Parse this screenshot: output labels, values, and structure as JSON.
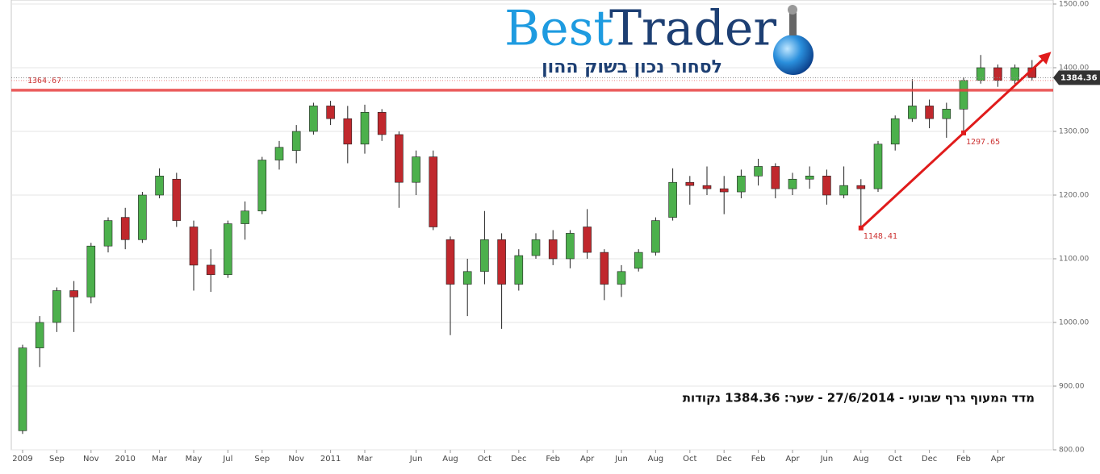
{
  "chart_data": {
    "type": "candlestick",
    "title": "מדד המעוף גרף שבועי - 27/6/2014 - שער: 1384.36 נקודות",
    "brand": {
      "first": "Best",
      "second": "Trader",
      "tagline": "לסחור נכון בשוק ההון"
    },
    "categories": [
      "2009",
      null,
      "Sep",
      null,
      "Nov",
      null,
      "2010",
      null,
      "Mar",
      null,
      "May",
      null,
      "Jul",
      null,
      "Sep",
      null,
      "Nov",
      null,
      "2011",
      null,
      "Mar",
      null,
      null,
      "Jun",
      null,
      "Aug",
      null,
      "Oct",
      null,
      "Dec",
      null,
      "Feb",
      null,
      "Apr",
      null,
      "Jun",
      null,
      "Aug",
      null,
      "Oct",
      null,
      "Dec",
      null,
      "Feb",
      null,
      "Apr",
      null,
      "Jun",
      null,
      "Aug",
      null,
      "Oct",
      null,
      "Dec",
      null,
      "Feb",
      null,
      "Apr",
      null,
      null
    ],
    "open": [
      830,
      960,
      1000,
      1050,
      1040,
      1120,
      1165,
      1130,
      1200,
      1225,
      1150,
      1090,
      1075,
      1155,
      1175,
      1255,
      1270,
      1300,
      1340,
      1320,
      1280,
      1330,
      1295,
      1220,
      1260,
      1130,
      1060,
      1080,
      1130,
      1060,
      1105,
      1130,
      1100,
      1150,
      1110,
      1060,
      1085,
      1110,
      1165,
      1220,
      1215,
      1210,
      1205,
      1230,
      1245,
      1210,
      1225,
      1230,
      1200,
      1215,
      1210,
      1280,
      1320,
      1340,
      1320,
      1335,
      1380,
      1400,
      1380,
      1400
    ],
    "high": [
      965,
      1010,
      1055,
      1065,
      1125,
      1165,
      1180,
      1205,
      1242,
      1235,
      1160,
      1115,
      1160,
      1190,
      1260,
      1285,
      1310,
      1345,
      1348,
      1340,
      1342,
      1335,
      1300,
      1270,
      1270,
      1135,
      1100,
      1175,
      1140,
      1115,
      1140,
      1145,
      1145,
      1178,
      1115,
      1090,
      1115,
      1165,
      1242,
      1230,
      1245,
      1230,
      1240,
      1257,
      1250,
      1235,
      1245,
      1240,
      1245,
      1225,
      1285,
      1325,
      1382,
      1350,
      1345,
      1385,
      1420,
      1405,
      1405,
      1412
    ],
    "low": [
      825,
      930,
      985,
      985,
      1030,
      1110,
      1115,
      1125,
      1195,
      1150,
      1050,
      1048,
      1070,
      1130,
      1170,
      1240,
      1250,
      1295,
      1310,
      1250,
      1265,
      1285,
      1180,
      1200,
      1145,
      980,
      1010,
      1060,
      990,
      1050,
      1100,
      1090,
      1085,
      1100,
      1035,
      1040,
      1080,
      1105,
      1160,
      1185,
      1200,
      1170,
      1195,
      1215,
      1195,
      1200,
      1210,
      1185,
      1195,
      1148.41,
      1205,
      1270,
      1315,
      1305,
      1290,
      1297.65,
      1375,
      1370,
      1372,
      1380
    ],
    "close": [
      960,
      1000,
      1050,
      1040,
      1120,
      1160,
      1130,
      1200,
      1230,
      1160,
      1090,
      1075,
      1155,
      1175,
      1255,
      1275,
      1300,
      1340,
      1320,
      1280,
      1330,
      1295,
      1220,
      1260,
      1150,
      1060,
      1080,
      1130,
      1060,
      1105,
      1130,
      1100,
      1140,
      1110,
      1060,
      1080,
      1110,
      1160,
      1220,
      1215,
      1210,
      1205,
      1230,
      1245,
      1210,
      1225,
      1230,
      1200,
      1215,
      1210,
      1280,
      1320,
      1340,
      1320,
      1335,
      1380,
      1400,
      1380,
      1400,
      1384.36
    ],
    "up_color": "#4cb04c",
    "down_color": "#c0282d",
    "ylim": [
      800,
      1500
    ],
    "yticks": [
      {
        "value": 800,
        "label": "800.00"
      },
      {
        "value": 900,
        "label": "900.00"
      },
      {
        "value": 1000,
        "label": "1000.00"
      },
      {
        "value": 1100,
        "label": "1100.00"
      },
      {
        "value": 1200,
        "label": "1200.00"
      },
      {
        "value": 1300,
        "label": "1300.00"
      },
      {
        "value": 1400,
        "label": "1400.00"
      },
      {
        "value": 1500,
        "label": "1500.00"
      }
    ],
    "grid": true,
    "resistance": 1364.67,
    "last_price": 1384.36,
    "trendline": {
      "start": 1148.41,
      "mid": 1297.65,
      "color": "#e01b1b"
    }
  }
}
